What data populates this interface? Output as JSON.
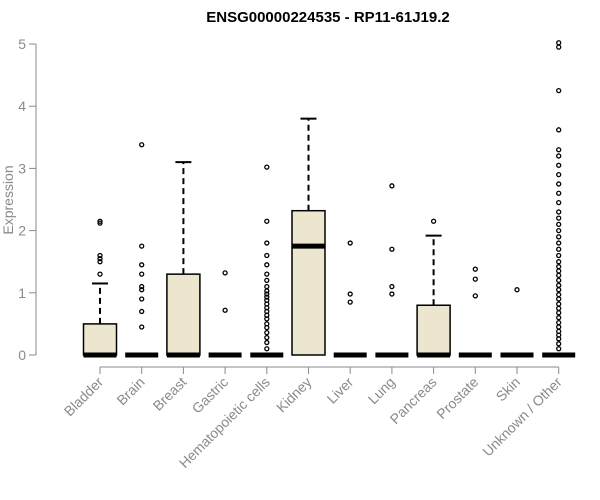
{
  "chart_data": {
    "type": "boxplot",
    "title": "ENSG00000224535 - RP11-61J19.2",
    "xlabel": "",
    "ylabel": "Expression",
    "ylim": [
      0,
      5
    ],
    "yticks": [
      0,
      1,
      2,
      3,
      4,
      5
    ],
    "grid": false,
    "legend": "none",
    "colors": {
      "box_fill": "#ede6cf",
      "box_stroke": "#000000",
      "axis": "#8a8a8a",
      "title": "#000000"
    },
    "categories": [
      "Bladder",
      "Brain",
      "Breast",
      "Gastric",
      "Hematopoietic cells",
      "Kidney",
      "Liver",
      "Lung",
      "Pancreas",
      "Prostate",
      "Skin",
      "Unknown / Other"
    ],
    "boxes": [
      {
        "category": "Bladder",
        "min": 0,
        "q1": 0,
        "median": 0,
        "q3": 0.5,
        "max": 1.15,
        "outliers": [
          1.3,
          1.5,
          1.55,
          1.6,
          2.12,
          2.15
        ]
      },
      {
        "category": "Brain",
        "min": 0,
        "q1": 0,
        "median": 0,
        "q3": 0,
        "max": 0,
        "outliers": [
          0.45,
          0.7,
          0.9,
          1.05,
          1.1,
          1.3,
          1.45,
          1.75,
          3.38
        ]
      },
      {
        "category": "Breast",
        "min": 0,
        "q1": 0,
        "median": 0,
        "q3": 1.3,
        "max": 3.1,
        "outliers": []
      },
      {
        "category": "Gastric",
        "min": 0,
        "q1": 0,
        "median": 0,
        "q3": 0,
        "max": 0,
        "outliers": [
          0.72,
          1.32
        ]
      },
      {
        "category": "Hematopoietic cells",
        "min": 0,
        "q1": 0,
        "median": 0,
        "q3": 0,
        "max": 0,
        "outliers": [
          0.1,
          0.2,
          0.28,
          0.36,
          0.44,
          0.5,
          0.58,
          0.64,
          0.7,
          0.76,
          0.82,
          0.88,
          0.93,
          0.98,
          1.03,
          1.1,
          1.2,
          1.3,
          1.45,
          1.6,
          1.8,
          2.15,
          3.02
        ]
      },
      {
        "category": "Kidney",
        "min": 0,
        "q1": 0,
        "median": 1.75,
        "q3": 2.32,
        "max": 3.8,
        "outliers": []
      },
      {
        "category": "Liver",
        "min": 0,
        "q1": 0,
        "median": 0,
        "q3": 0,
        "max": 0,
        "outliers": [
          0.85,
          0.98,
          1.8
        ]
      },
      {
        "category": "Lung",
        "min": 0,
        "q1": 0,
        "median": 0,
        "q3": 0,
        "max": 0,
        "outliers": [
          0.98,
          1.1,
          1.7,
          2.72
        ]
      },
      {
        "category": "Pancreas",
        "min": 0,
        "q1": 0,
        "median": 0,
        "q3": 0.8,
        "max": 1.92,
        "outliers": [
          2.15
        ]
      },
      {
        "category": "Prostate",
        "min": 0,
        "q1": 0,
        "median": 0,
        "q3": 0,
        "max": 0,
        "outliers": [
          0.95,
          1.22,
          1.38
        ]
      },
      {
        "category": "Skin",
        "min": 0,
        "q1": 0,
        "median": 0,
        "q3": 0,
        "max": 0,
        "outliers": [
          1.05
        ]
      },
      {
        "category": "Unknown / Other",
        "min": 0,
        "q1": 0,
        "median": 0,
        "q3": 0,
        "max": 0,
        "outliers": [
          0.1,
          0.18,
          0.26,
          0.32,
          0.38,
          0.45,
          0.52,
          0.6,
          0.68,
          0.75,
          0.82,
          0.9,
          0.97,
          1.05,
          1.12,
          1.2,
          1.28,
          1.35,
          1.42,
          1.5,
          1.6,
          1.7,
          1.8,
          1.9,
          2.0,
          2.1,
          2.2,
          2.3,
          2.45,
          2.6,
          2.75,
          2.9,
          3.05,
          3.2,
          3.3,
          3.62,
          4.25,
          4.95,
          5.02
        ]
      }
    ]
  }
}
